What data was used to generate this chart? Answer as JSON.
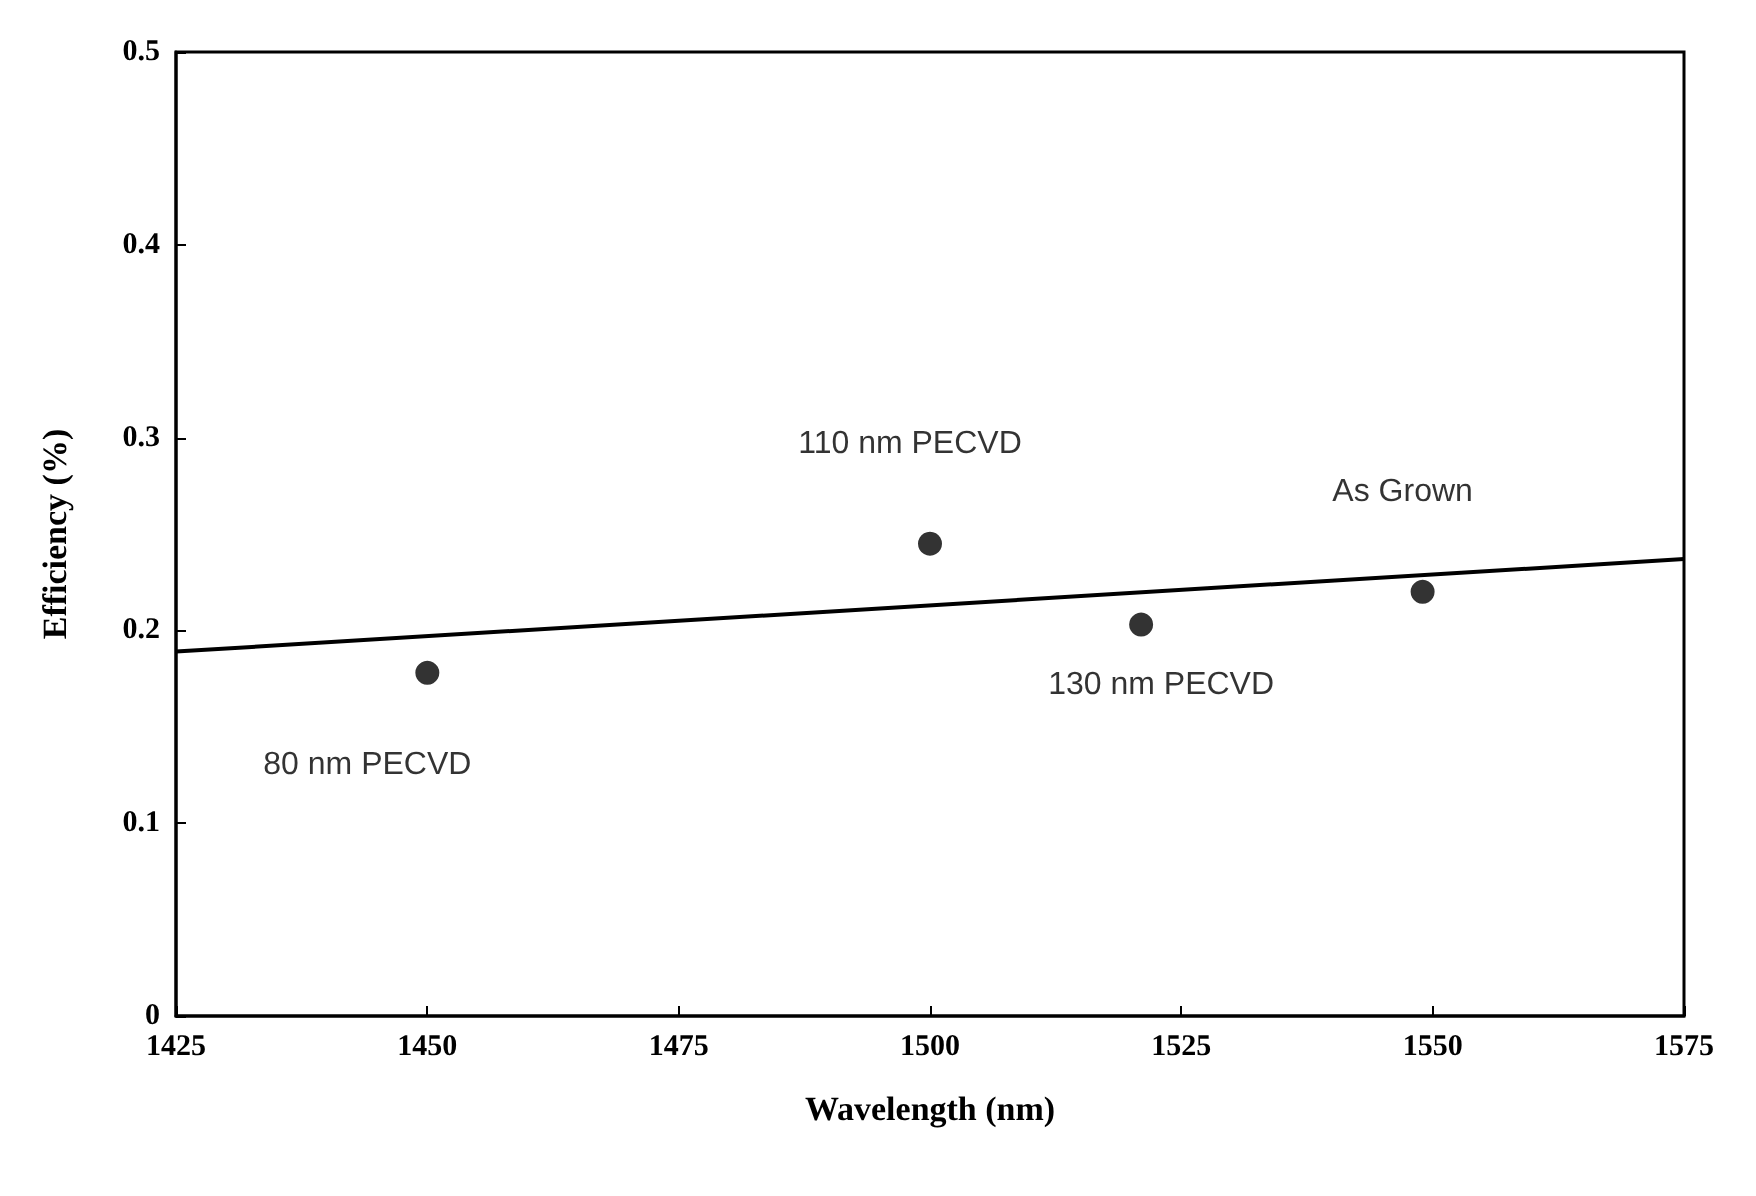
{
  "chart_data": {
    "type": "scatter",
    "xlabel": "Wavelength (nm)",
    "ylabel": "Efficiency (%)",
    "x": [
      1450,
      1500,
      1521,
      1549
    ],
    "grid": false,
    "series": [
      {
        "color": "#000000",
        "marker": "circle",
        "values": [
          0.178,
          0.245,
          0.203,
          0.22
        ]
      },
      {
        "type": "line",
        "color": "#000000",
        "x": [
          1425,
          1575
        ],
        "values": [
          0.189,
          0.237
        ]
      }
    ],
    "xlim": [
      1425,
      1575
    ],
    "xticks": [
      1425,
      1450,
      1475,
      1500,
      1525,
      1550,
      1575
    ],
    "ylim": [
      0,
      0.5
    ],
    "yticks": [
      0,
      0.1,
      0.2,
      0.3,
      0.4,
      0.5
    ],
    "annotations": [
      {
        "text": "80 nm PECVD",
        "x": 1450,
        "y": 0.178
      },
      {
        "text": "110 nm PECVD",
        "x": 1500,
        "y": 0.245
      },
      {
        "text": "130 nm PECVD",
        "x": 1521,
        "y": 0.203
      },
      {
        "text": "As Grown",
        "x": 1549,
        "y": 0.22
      }
    ]
  }
}
